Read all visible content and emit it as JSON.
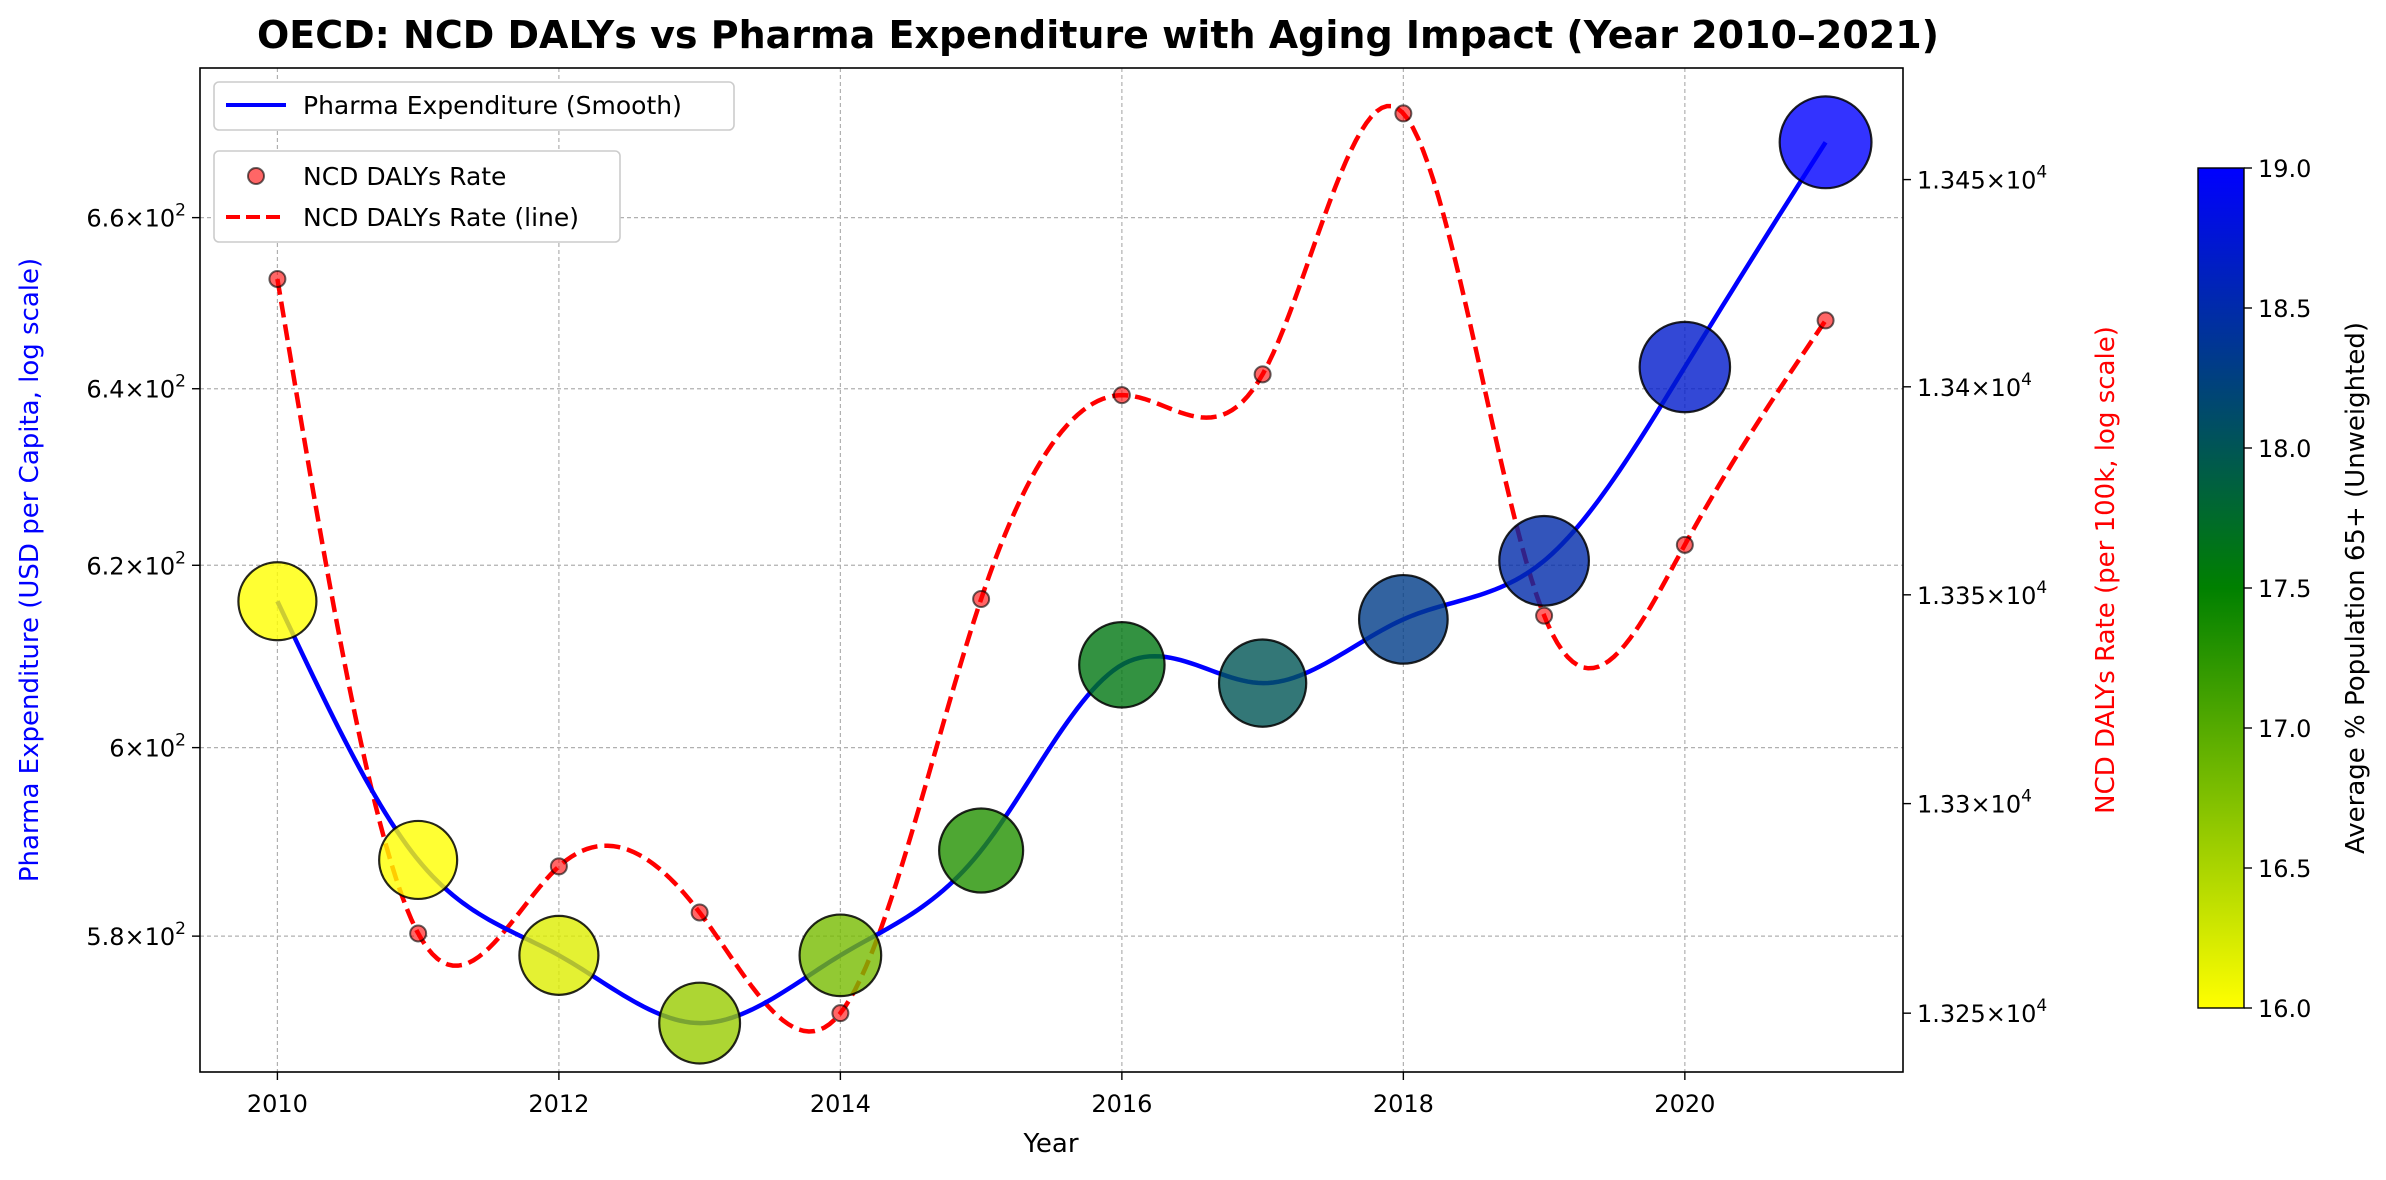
{
  "chart_data": {
    "type": "line",
    "title": "OECD: NCD DALYs vs Pharma Expenditure with Aging Impact (Year 2010–2021)",
    "xlabel": "Year",
    "ylabel_left": "Pharma Expenditure (USD per Capita, log scale)",
    "ylabel_right": "NCD DALYs Rate (per 100k, log scale)",
    "colorbar_label": "Average % Population 65+ (Unweighted)",
    "x": [
      2010,
      2011,
      2012,
      2013,
      2014,
      2015,
      2016,
      2017,
      2018,
      2019,
      2020,
      2021
    ],
    "x_ticks": [
      "2010",
      "2012",
      "2014",
      "2016",
      "2018",
      "2020"
    ],
    "xlim": [
      2009.45,
      2021.55
    ],
    "left_axis": {
      "scale": "log",
      "ylim": [
        566,
        678
      ],
      "ticks": [
        {
          "v": 580,
          "m": "5.8"
        },
        {
          "v": 600,
          "m": "6"
        },
        {
          "v": 620,
          "m": "6.2"
        },
        {
          "v": 640,
          "m": "6.4"
        },
        {
          "v": 660,
          "m": "6.6"
        }
      ],
      "tick_suffix": "×10",
      "tick_exp": "2"
    },
    "right_axis": {
      "scale": "log",
      "ylim": [
        13236,
        13477
      ],
      "ticks": [
        {
          "v": 13250,
          "m": "1.325"
        },
        {
          "v": 13300,
          "m": "1.33"
        },
        {
          "v": 13350,
          "m": "1.335"
        },
        {
          "v": 13400,
          "m": "1.34"
        },
        {
          "v": 13450,
          "m": "1.345"
        }
      ],
      "tick_suffix": "×10",
      "tick_exp": "4"
    },
    "colorbar": {
      "range": [
        16.0,
        19.0
      ],
      "ticks": [
        "16.0",
        "16.5",
        "17.0",
        "17.5",
        "18.0",
        "18.5",
        "19.0"
      ],
      "colors": [
        "#ffff00",
        "#008000",
        "#0000ff"
      ]
    },
    "series": [
      {
        "name": "Pharma Expenditure (Smooth)",
        "axis": "left",
        "color": "#0000ff",
        "values": [
          616,
          588,
          578,
          571,
          578,
          589,
          609,
          607,
          614,
          620.5,
          642.5,
          669
        ]
      },
      {
        "name": "NCD DALYs Rate",
        "axis": "right",
        "color": "#ff0000",
        "values": [
          13426,
          13269,
          13285,
          13274,
          13250,
          13349,
          13398,
          13403,
          13466,
          13345,
          13362,
          13416
        ]
      }
    ],
    "legend_labels": [
      "Pharma Expenditure (Smooth)",
      "NCD DALYs Rate",
      "NCD DALYs Rate (line)"
    ],
    "bubble_pct65": [
      16.0,
      16.0,
      16.2,
      16.6,
      16.8,
      17.3,
      17.6,
      18.0,
      18.3,
      18.5,
      18.7,
      19.0
    ]
  }
}
